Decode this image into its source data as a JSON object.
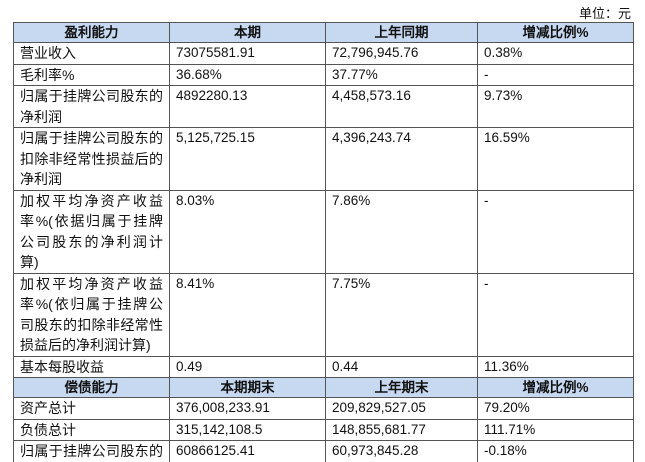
{
  "unit": "单位：元",
  "profit": {
    "header": [
      "盈利能力",
      "本期",
      "上年同期",
      "增减比例%"
    ],
    "rows": [
      [
        "营业收入",
        "73075581.91",
        "72,796,945.76",
        "0.38%"
      ],
      [
        "毛利率%",
        "36.68%",
        "37.77%",
        "-"
      ],
      [
        "归属于挂牌公司股东的净利润",
        "4892280.13",
        "4,458,573.16",
        "9.73%"
      ],
      [
        "归属于挂牌公司股东的扣除非经常性损益后的净利润",
        "5,125,725.15",
        "4,396,243.74",
        "16.59%"
      ],
      [
        "加权平均净资产收益率%(依据归属于挂牌公司股东的净利润计算)",
        "8.03%",
        "7.86%",
        "-"
      ],
      [
        "加权平均净资产收益率%(依归属于挂牌公司股东的扣除非经常性损益后的净利润计算)",
        "8.41%",
        "7.75%",
        "-"
      ],
      [
        "基本每股收益",
        "0.49",
        "0.44",
        "11.36%"
      ]
    ]
  },
  "solvency": {
    "header": [
      "偿债能力",
      "本期期末",
      "上年期末",
      "增减比例%"
    ],
    "rows": [
      [
        "资产总计",
        "376,008,233.91",
        "209,829,527.05",
        "79.20%"
      ],
      [
        "负债总计",
        "315,142,108.5",
        "148,855,681.77",
        "111.71%"
      ],
      [
        "归属于挂牌公司股东的净资产",
        "60866125.41",
        "60,973,845.28",
        "-0.18%"
      ]
    ]
  }
}
